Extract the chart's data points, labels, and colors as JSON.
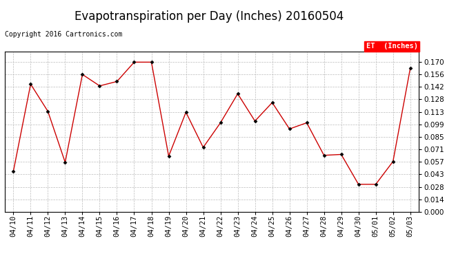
{
  "title": "Evapotranspiration per Day (Inches) 20160504",
  "copyright_text": "Copyright 2016 Cartronics.com",
  "legend_label": "ET  (Inches)",
  "legend_bg": "#ff0000",
  "legend_fg": "#ffffff",
  "line_color": "#cc0000",
  "marker_color": "#000000",
  "bg_color": "#ffffff",
  "plot_bg_color": "#ffffff",
  "grid_color": "#bbbbbb",
  "dates": [
    "04/10",
    "04/11",
    "04/12",
    "04/13",
    "04/14",
    "04/15",
    "04/16",
    "04/17",
    "04/18",
    "04/19",
    "04/20",
    "04/21",
    "04/22",
    "04/23",
    "04/24",
    "04/25",
    "04/26",
    "04/27",
    "04/28",
    "04/29",
    "04/30",
    "05/01",
    "05/02",
    "05/03"
  ],
  "values": [
    0.046,
    0.145,
    0.114,
    0.056,
    0.156,
    0.143,
    0.148,
    0.17,
    0.17,
    0.063,
    0.113,
    0.073,
    0.101,
    0.134,
    0.103,
    0.124,
    0.094,
    0.101,
    0.064,
    0.065,
    0.031,
    0.031,
    0.057,
    0.163
  ],
  "ylim_min": 0.0,
  "ylim_max": 0.182,
  "yticks": [
    0.0,
    0.014,
    0.028,
    0.043,
    0.057,
    0.071,
    0.085,
    0.099,
    0.113,
    0.128,
    0.142,
    0.156,
    0.17
  ],
  "title_fontsize": 12,
  "tick_fontsize": 7.5,
  "copyright_fontsize": 7
}
